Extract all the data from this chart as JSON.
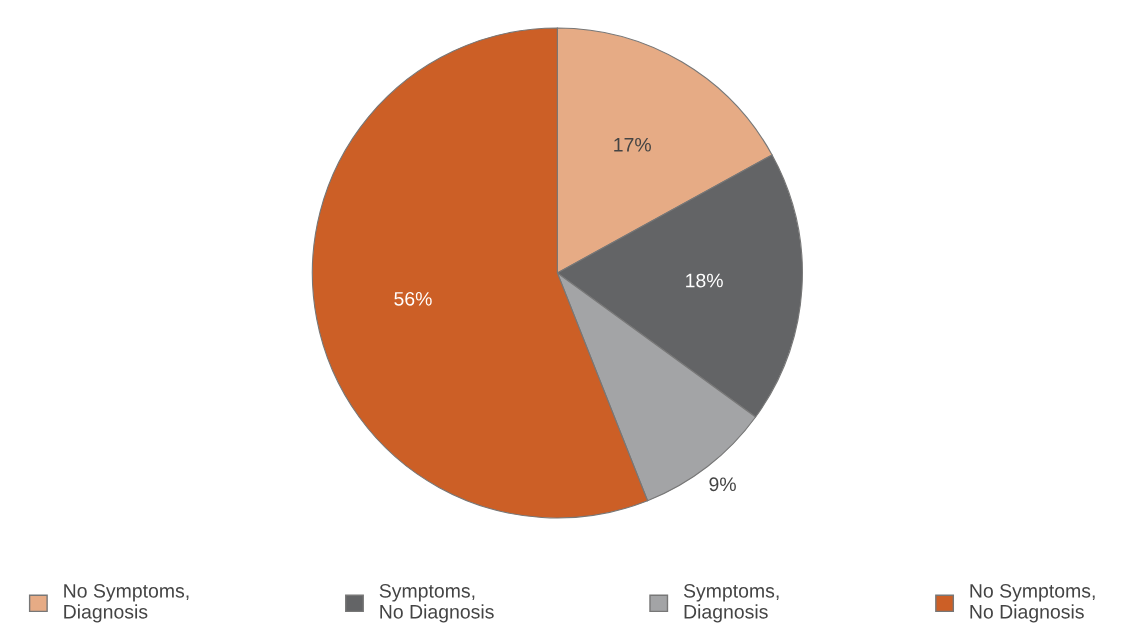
{
  "chart_data": {
    "type": "pie",
    "categories": [
      "No Symptoms,\nDiagnosis",
      "Symptoms,\nNo Diagnosis",
      "Symptoms,\nDiagnosis",
      "No Symptoms,\nNo Diagnosis"
    ],
    "values": [
      17,
      18,
      9,
      56
    ],
    "value_labels": [
      "17%",
      "18%",
      "9%",
      "56%"
    ],
    "colors": [
      "#e6ab85",
      "#636466",
      "#a3a4a6",
      "#cc5f26"
    ],
    "legend": "bottom"
  }
}
